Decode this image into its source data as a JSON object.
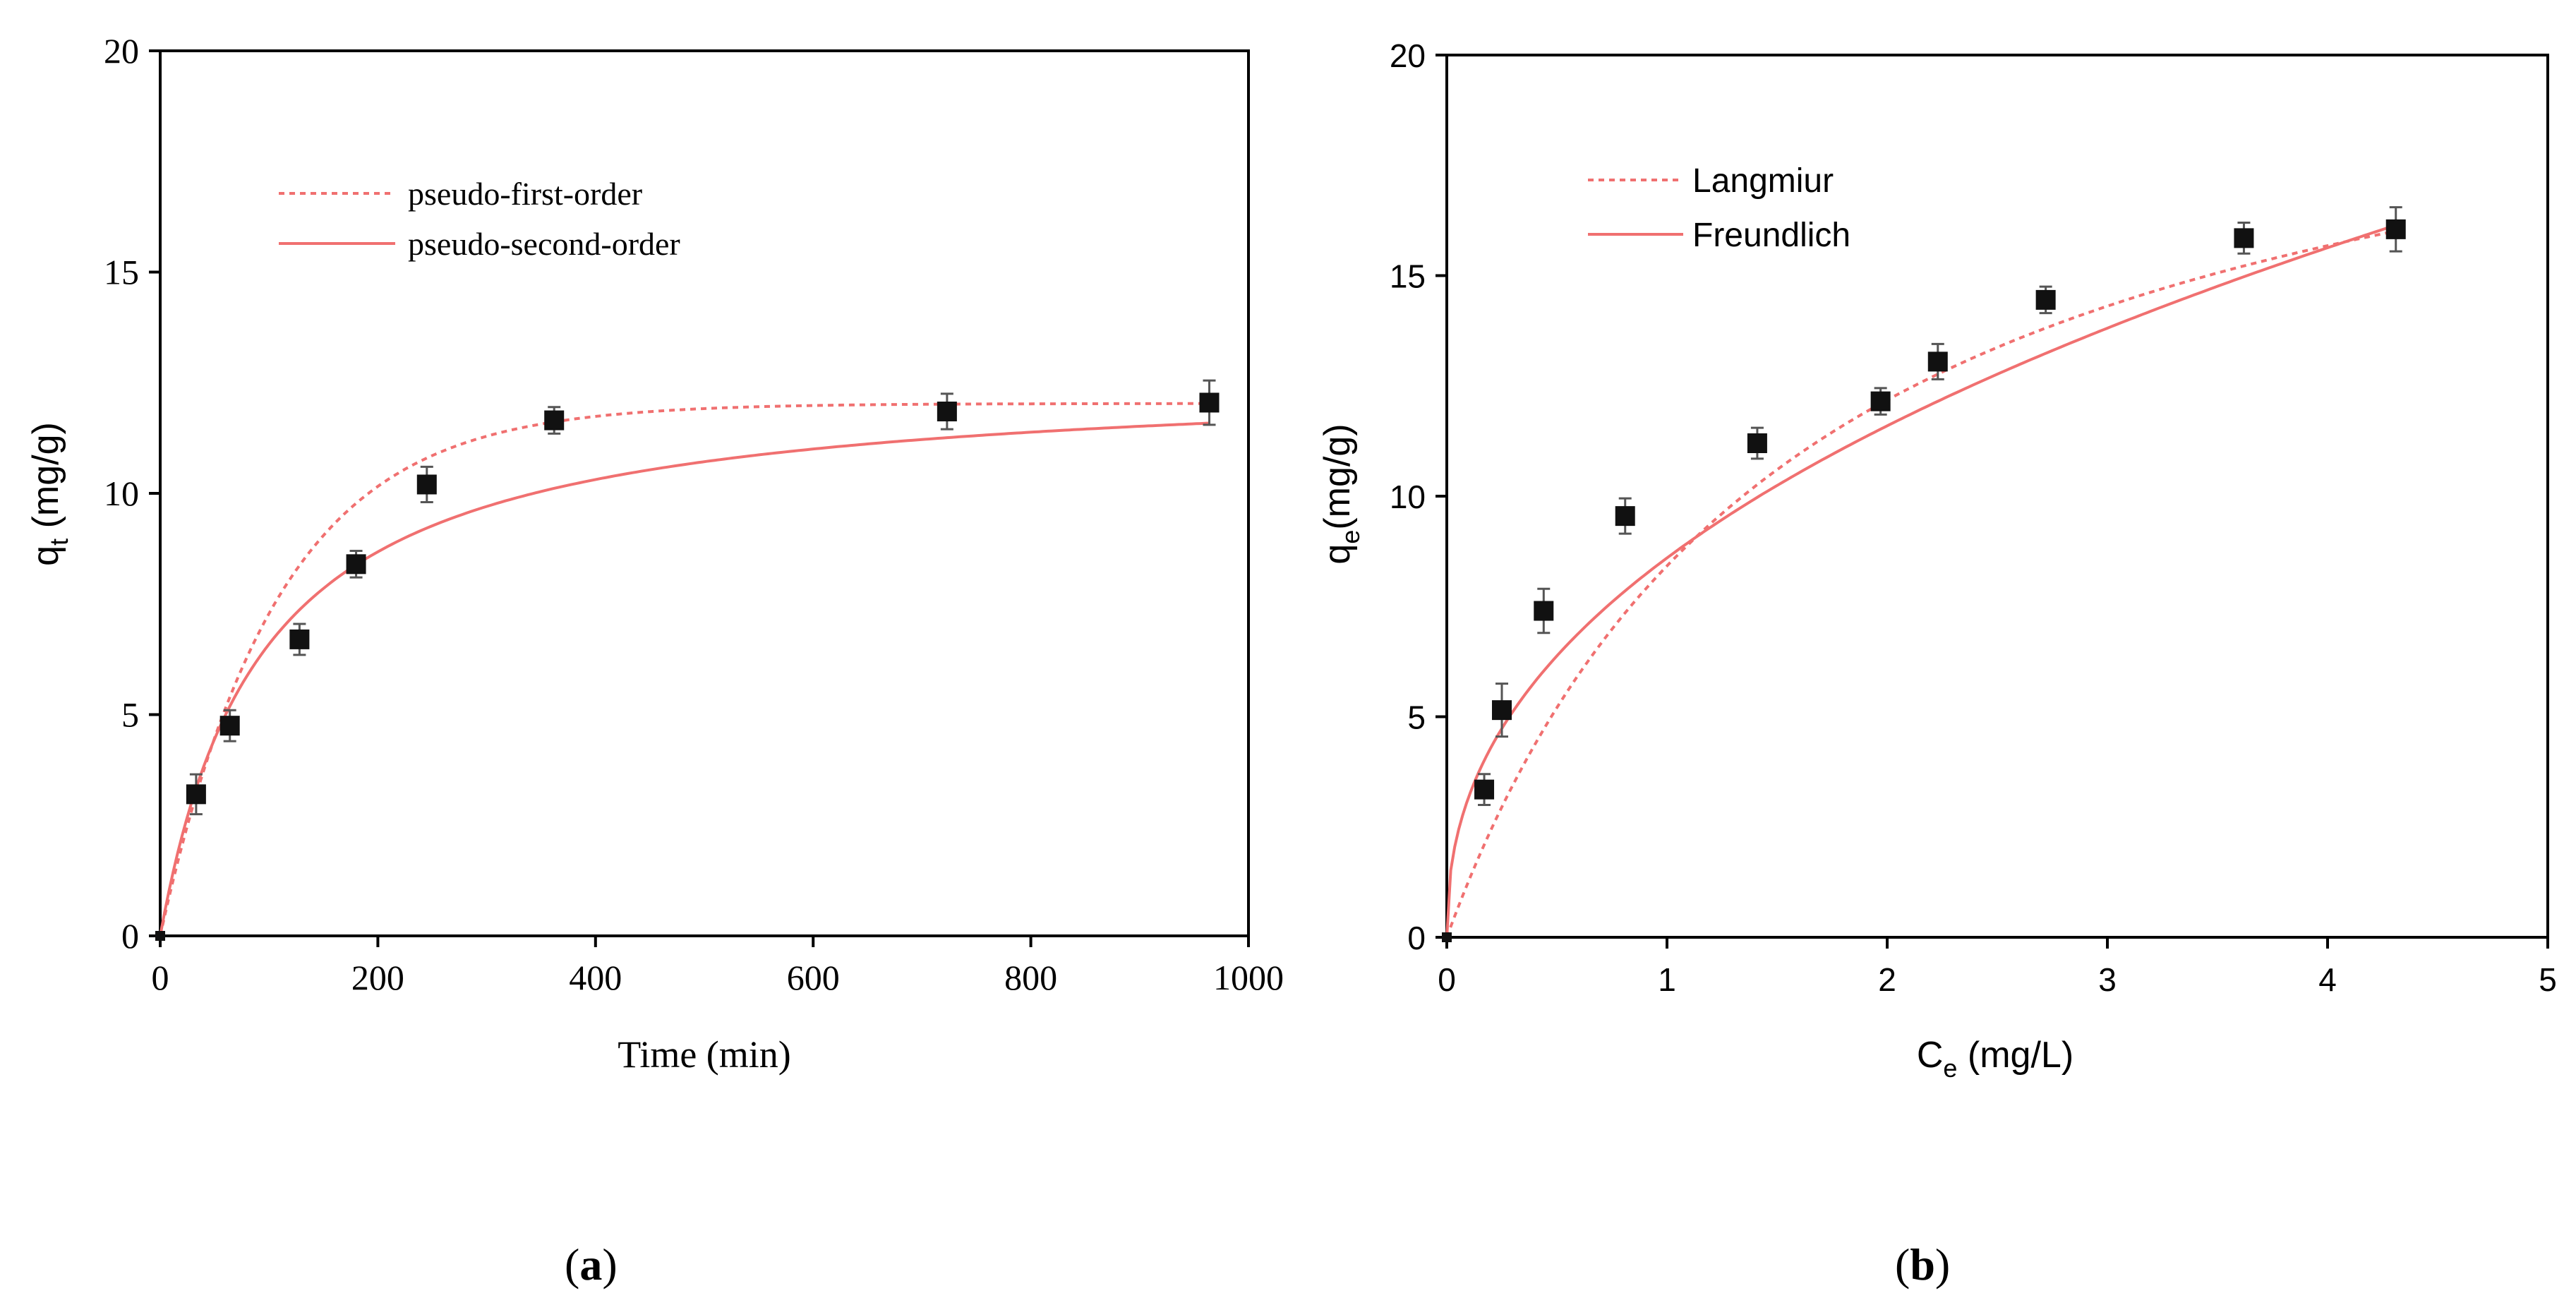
{
  "chart_data": [
    {
      "type": "scatter",
      "panel_label": "a",
      "xlabel": "Time (min)",
      "ylabel_main": "q",
      "ylabel_sub": "t",
      "ylabel_rest": " (mg/g)",
      "xlim": [
        0,
        1000
      ],
      "ylim": [
        0,
        20
      ],
      "xticks": [
        "0",
        "200",
        "400",
        "600",
        "800",
        "1000"
      ],
      "xtick_values": [
        0,
        200,
        400,
        600,
        800,
        1000
      ],
      "yticks": [
        "0",
        "5",
        "10",
        "15",
        "20"
      ],
      "ytick_values": [
        0,
        5,
        10,
        15,
        20
      ],
      "points": {
        "x": [
          0,
          33,
          64,
          128,
          180,
          245,
          362,
          723,
          964
        ],
        "y": [
          0,
          3.2,
          4.75,
          6.7,
          8.4,
          10.2,
          11.65,
          11.85,
          12.05
        ],
        "err": [
          0,
          0.45,
          0.35,
          0.35,
          0.3,
          0.4,
          0.3,
          0.4,
          0.5
        ]
      },
      "series": [
        {
          "name": "pseudo-first-order",
          "style": "dotted",
          "model": "pfo",
          "qe": 12.03,
          "k": 0.0093
        },
        {
          "name": "pseudo-second-order",
          "style": "solid",
          "model": "pso",
          "qe": 12.7,
          "k": 0.00085
        }
      ],
      "colors": {
        "fit": "#f07070",
        "marker": "#111111"
      }
    },
    {
      "type": "scatter",
      "panel_label": "b",
      "xlabel_main": "C",
      "xlabel_sub": "e",
      "xlabel_rest": " (mg/L)",
      "ylabel_main": "q",
      "ylabel_sub": "e",
      "ylabel_rest": "(mg/g)",
      "xlim": [
        0,
        5
      ],
      "ylim": [
        0,
        20
      ],
      "xticks": [
        "0",
        "1",
        "2",
        "3",
        "4",
        "5"
      ],
      "xtick_values": [
        0,
        1,
        2,
        3,
        4,
        5
      ],
      "yticks": [
        "0",
        "5",
        "10",
        "15",
        "20"
      ],
      "ytick_values": [
        0,
        5,
        10,
        15,
        20
      ],
      "points": {
        "x": [
          0,
          0.17,
          0.25,
          0.44,
          0.81,
          1.41,
          1.97,
          2.23,
          2.72,
          3.62,
          4.31
        ],
        "y": [
          0,
          3.35,
          5.15,
          7.4,
          9.55,
          11.2,
          12.15,
          13.05,
          14.45,
          15.85,
          16.05
        ],
        "err": [
          0,
          0.35,
          0.6,
          0.5,
          0.4,
          0.35,
          0.3,
          0.4,
          0.3,
          0.35,
          0.5
        ]
      },
      "series": [
        {
          "name": "Langmiur",
          "style": "dotted",
          "model": "langmuir",
          "qm": 22.0,
          "KL": 0.62
        },
        {
          "name": "Freundlich",
          "style": "solid",
          "model": "freundlich",
          "KF": 8.6,
          "n": 2.32
        }
      ],
      "colors": {
        "fit": "#f07070",
        "marker": "#111111"
      }
    }
  ]
}
